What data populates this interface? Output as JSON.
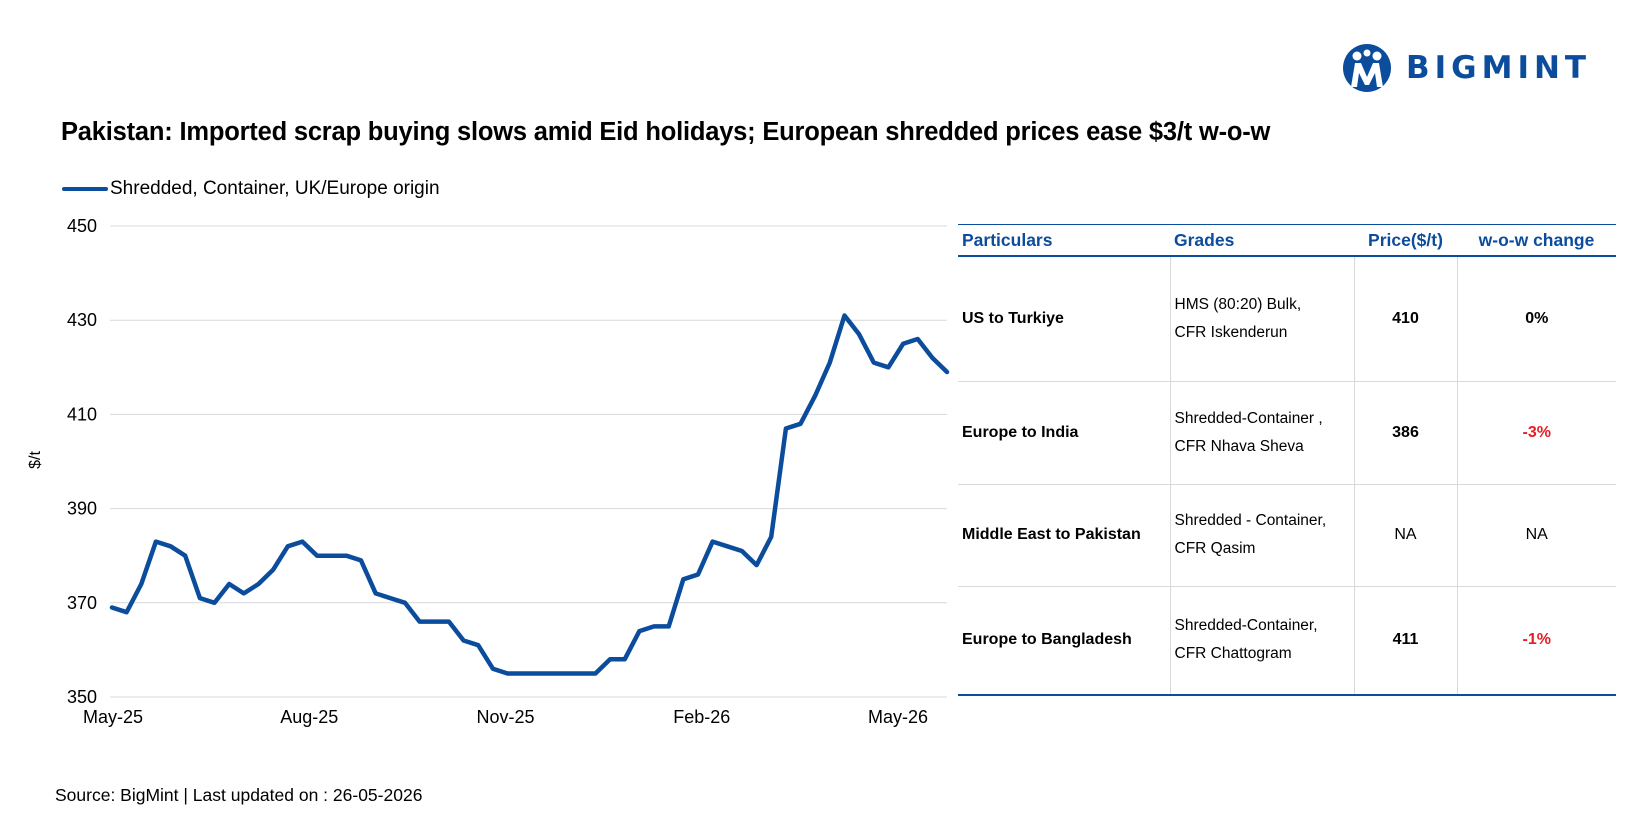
{
  "brand": {
    "name": "BIGMINT",
    "color": "#0b4c9c"
  },
  "title": "Pakistan: Imported scrap buying slows amid Eid holidays; European shredded prices ease $3/t w-o-w",
  "chart_data": {
    "type": "line",
    "ylabel": "$/t",
    "ylim": [
      350,
      450
    ],
    "yticks": [
      350,
      370,
      390,
      410,
      430,
      450
    ],
    "xtick_labels": [
      "May-25",
      "Aug-25",
      "Nov-25",
      "Feb-26",
      "May-26"
    ],
    "grid": true,
    "legend_placement": "top-left",
    "series": [
      {
        "name": "Shredded, Container, UK/Europe origin",
        "color": "#0b4c9c",
        "values": [
          369,
          368,
          374,
          383,
          382,
          380,
          371,
          370,
          374,
          372,
          374,
          377,
          382,
          383,
          380,
          380,
          380,
          379,
          372,
          371,
          370,
          366,
          366,
          366,
          362,
          361,
          356,
          355,
          355,
          355,
          355,
          355,
          355,
          355,
          358,
          358,
          364,
          365,
          365,
          375,
          376,
          383,
          382,
          381,
          378,
          384,
          407,
          408,
          414,
          421,
          431,
          427,
          421,
          420,
          425,
          426,
          422,
          419
        ]
      }
    ]
  },
  "table": {
    "headers": [
      "Particulars",
      "Grades",
      "Price($/t)",
      "w-o-w change"
    ],
    "rows": [
      {
        "particular": "US to Turkiye",
        "grade_line1": "HMS (80:20) Bulk,",
        "grade_line2": "CFR Iskenderun",
        "price": "410",
        "change": "0%",
        "change_dir": "flat"
      },
      {
        "particular": "Europe to India",
        "grade_line1": "Shredded-Container ,",
        "grade_line2": "CFR Nhava Sheva",
        "price": "386",
        "change": "-3%",
        "change_dir": "down"
      },
      {
        "particular": "Middle East to Pakistan",
        "grade_line1": "Shredded - Container,",
        "grade_line2": "CFR Qasim",
        "price": "NA",
        "change": "NA",
        "change_dir": "none"
      },
      {
        "particular": "Europe to Bangladesh",
        "grade_line1": "Shredded-Container,",
        "grade_line2": "CFR Chattogram",
        "price": "411",
        "change": "-1%",
        "change_dir": "down"
      }
    ]
  },
  "source": "Source: BigMint | Last updated on : 26-05-2026"
}
